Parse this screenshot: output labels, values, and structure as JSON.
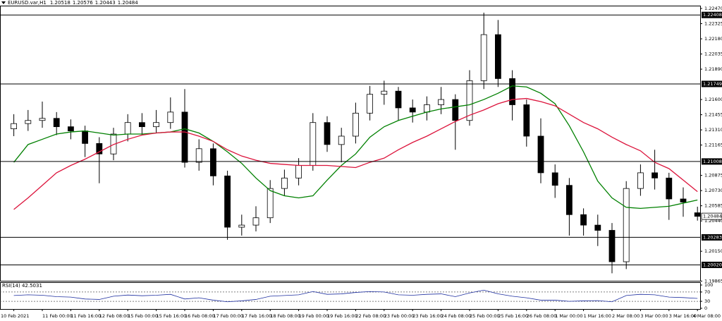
{
  "chart_data": {
    "type": "candlestick",
    "symbol": "EURUSD.var,H1",
    "categories": [
      "10 Feb 2021",
      null,
      "11 Feb 00:00",
      null,
      "11 Feb 16:00",
      null,
      "12 Feb 08:00",
      null,
      "15 Feb 00:00",
      null,
      "15 Feb 16:00",
      null,
      "16 Feb 08:00",
      null,
      "17 Feb 00:00",
      null,
      "17 Feb 16:00",
      null,
      "18 Feb 08:00",
      null,
      "19 Feb 00:00",
      null,
      "19 Feb 16:00",
      null,
      "22 Feb 08:00",
      null,
      "23 Feb 00:00",
      null,
      "23 Feb 16:00",
      null,
      "24 Feb 08:00",
      null,
      "25 Feb 00:00",
      null,
      "25 Feb 16:00",
      null,
      "26 Feb 08:00",
      null,
      "1 Mar 00:00",
      null,
      "1 Mar 16:00",
      null,
      "2 Mar 08:00",
      null,
      "3 Mar 00:00",
      null,
      "3 Mar 16:00",
      null,
      "4 Mar 08:00"
    ],
    "open": [
      1.2132,
      1.2137,
      1.214,
      1.2142,
      1.2134,
      1.213,
      1.2118,
      1.2108,
      1.2127,
      1.2138,
      1.2134,
      1.2138,
      1.2148,
      1.21,
      1.2113,
      1.2087,
      1.2038,
      1.204,
      1.2047,
      1.2075,
      1.2085,
      1.2097,
      1.2138,
      1.2117,
      1.2125,
      1.2147,
      1.2165,
      1.2168,
      1.2152,
      1.2148,
      1.2155,
      1.216,
      1.214,
      1.2178,
      1.2222,
      1.218,
      1.2155,
      1.2125,
      1.209,
      1.2078,
      1.205,
      1.204,
      1.2035,
      1.2005,
      1.2075,
      1.209,
      1.2085,
      1.2065,
      1.20518
    ],
    "high": [
      1.2146,
      1.215,
      1.2158,
      1.2148,
      1.2141,
      1.2135,
      1.2124,
      1.2133,
      1.2146,
      1.2147,
      1.215,
      1.2162,
      1.217,
      1.2122,
      1.2118,
      1.2092,
      1.205,
      1.2058,
      1.2083,
      1.2093,
      1.2104,
      1.2147,
      1.2144,
      1.2133,
      1.2157,
      1.2173,
      1.2178,
      1.2172,
      1.216,
      1.2163,
      1.2172,
      1.2165,
      1.2188,
      1.2243,
      1.2236,
      1.2188,
      1.216,
      1.2142,
      1.2098,
      1.2085,
      1.2056,
      1.205,
      1.2042,
      1.2082,
      1.2098,
      1.2112,
      1.209,
      1.2076,
      1.20576
    ],
    "low": [
      1.2125,
      1.213,
      1.2133,
      1.2126,
      1.2122,
      1.2105,
      1.208,
      1.2102,
      1.212,
      1.2126,
      1.2128,
      1.2132,
      1.2095,
      1.2092,
      1.2078,
      1.2026,
      1.203,
      1.2034,
      1.2042,
      1.2068,
      1.2078,
      1.2092,
      1.211,
      1.21,
      1.2118,
      1.214,
      1.2155,
      1.214,
      1.2138,
      1.214,
      1.2146,
      1.2112,
      1.2135,
      1.217,
      1.2172,
      1.214,
      1.2115,
      1.208,
      1.2066,
      1.203,
      1.203,
      1.202,
      1.1994,
      1.1998,
      1.2068,
      1.2074,
      1.2045,
      1.2048,
      1.20443
    ],
    "close": [
      1.2137,
      1.214,
      1.2142,
      1.2134,
      1.213,
      1.2118,
      1.2108,
      1.2127,
      1.2138,
      1.2134,
      1.2138,
      1.2148,
      1.21,
      1.2113,
      1.2087,
      1.2038,
      1.204,
      1.2047,
      1.2075,
      1.2085,
      1.2097,
      1.2138,
      1.2117,
      1.2125,
      1.2147,
      1.2165,
      1.2168,
      1.2152,
      1.2148,
      1.2155,
      1.216,
      1.214,
      1.2178,
      1.2222,
      1.218,
      1.2155,
      1.2125,
      1.209,
      1.2078,
      1.205,
      1.204,
      1.2035,
      1.2005,
      1.2075,
      1.209,
      1.2085,
      1.2065,
      1.2062,
      1.20484
    ],
    "up_color": "#ffffff",
    "down_color": "#000000",
    "ylim": [
      1.19868,
      1.22497
    ],
    "yticks": [
      {
        "value": 1.2247,
        "label": "1.22470"
      },
      1.22325,
      {
        "value": 1.2218,
        "label": "1.22180"
      },
      1.22035,
      {
        "value": 1.2189,
        "label": "1.21890"
      },
      {
        "value": 1.216,
        "label": "1.21600"
      },
      1.21455,
      {
        "value": 1.2131,
        "label": "1.21310"
      },
      1.21165,
      1.20875,
      {
        "value": 1.2073,
        "label": "1.20730"
      },
      1.20585,
      {
        "value": 1.2044,
        "label": "1.20440"
      },
      {
        "value": 1.2015,
        "label": "1.20150"
      },
      1.19865
    ],
    "levels": [
      1.22408,
      1.21749,
      1.21008,
      1.20283,
      {
        "value": 1.2002,
        "label": "1.20020"
      }
    ],
    "overlays": [
      {
        "type": "line",
        "color": "#008000",
        "values": [
          1.21,
          1.2117,
          1.2122,
          1.2127,
          1.2129,
          1.213,
          1.2128,
          1.2126,
          1.2127,
          1.2127,
          1.2128,
          1.2129,
          1.2132,
          1.2128,
          1.212,
          1.211,
          1.2099,
          1.2085,
          1.2073,
          1.2068,
          1.2066,
          1.2068,
          1.2083,
          1.2097,
          1.2108,
          1.2124,
          1.2134,
          1.214,
          1.2144,
          1.2148,
          1.2151,
          1.2153,
          1.2155,
          1.216,
          1.2166,
          1.2173,
          1.2172,
          1.2166,
          1.2156,
          1.2135,
          1.211,
          1.2082,
          1.2066,
          1.2057,
          1.2056,
          1.2057,
          1.2058,
          1.2061,
          1.2064
        ]
      },
      {
        "type": "line",
        "color": "#dc143c",
        "values": [
          1.2055,
          1.2066,
          1.2078,
          1.209,
          1.2097,
          1.2103,
          1.211,
          1.2117,
          1.2122,
          1.2126,
          1.2128,
          1.2129,
          1.2129,
          1.2125,
          1.212,
          1.2112,
          1.2106,
          1.2102,
          1.2099,
          1.2098,
          1.2097,
          1.2097,
          1.2097,
          1.2096,
          1.2095,
          1.21,
          1.2104,
          1.2112,
          1.2119,
          1.2125,
          1.2132,
          1.2139,
          1.2145,
          1.215,
          1.2156,
          1.216,
          1.2161,
          1.2158,
          1.2154,
          1.2146,
          1.2138,
          1.2132,
          1.2124,
          1.2117,
          1.2111,
          1.21,
          1.2094,
          1.2083,
          1.2072
        ]
      }
    ],
    "indicator": {
      "type": "line",
      "title": "RSI(14) 42.5031",
      "color": "#1e2fa0",
      "values": [
        55,
        58,
        56,
        50,
        48,
        40,
        38,
        52,
        57,
        54,
        56,
        60,
        40,
        45,
        35,
        28,
        32,
        38,
        52,
        55,
        58,
        72,
        60,
        62,
        68,
        72,
        70,
        58,
        56,
        60,
        62,
        50,
        66,
        78,
        62,
        52,
        45,
        35,
        35,
        30,
        32,
        33,
        28,
        55,
        60,
        58,
        48,
        46,
        42.5031
      ],
      "ylim": [
        0,
        100
      ],
      "yticks": [
        100,
        70,
        30,
        0
      ]
    }
  }
}
